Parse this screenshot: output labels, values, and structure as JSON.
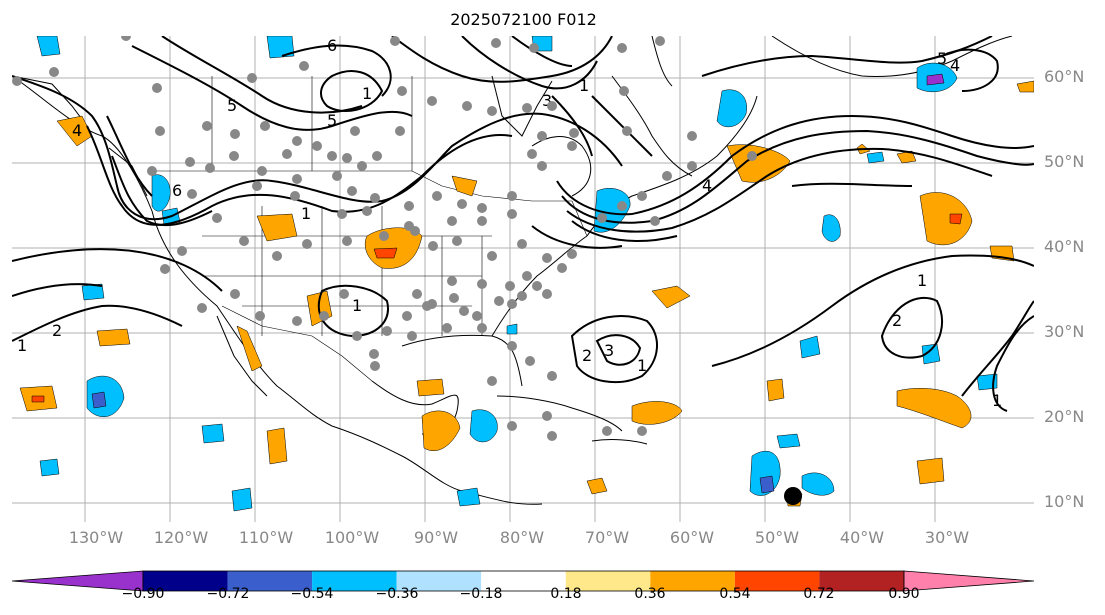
{
  "title": "2025072100 F012",
  "lat_labels": [
    "60°N",
    "50°N",
    "40°N",
    "30°N",
    "20°N",
    "10°N"
  ],
  "lon_labels": [
    "130°W",
    "120°W",
    "110°W",
    "100°W",
    "90°W",
    "80°W",
    "70°W",
    "60°W",
    "50°W",
    "40°W",
    "30°W"
  ],
  "contour_labels": [
    "1",
    "2",
    "3",
    "4",
    "5",
    "6"
  ],
  "colorbar": {
    "tick_labels": [
      "−0.90",
      "−0.72",
      "−0.54",
      "−0.36",
      "−0.18",
      "0.18",
      "0.36",
      "0.54",
      "0.72",
      "0.90"
    ],
    "colors": [
      "#9932cc",
      "#00008b",
      "#3a5fcd",
      "#00bfff",
      "#b0e2ff",
      "#ffffff",
      "#ffe88a",
      "#ffa500",
      "#ff4500",
      "#b22222",
      "#ff80aa"
    ]
  },
  "marker_color": "#888888"
}
